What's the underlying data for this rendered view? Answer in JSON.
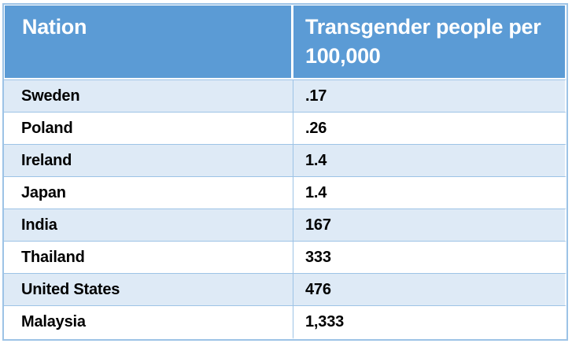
{
  "table": {
    "columns": [
      {
        "label": "Nation"
      },
      {
        "label": "Transgender people per 100,000"
      }
    ],
    "rows": [
      {
        "nation": "Sweden",
        "value": ".17"
      },
      {
        "nation": "Poland",
        "value": ".26"
      },
      {
        "nation": "Ireland",
        "value": "1.4"
      },
      {
        "nation": "Japan",
        "value": "1.4"
      },
      {
        "nation": "India",
        "value": "167"
      },
      {
        "nation": "Thailand",
        "value": "333"
      },
      {
        "nation": "United States",
        "value": "476"
      },
      {
        "nation": "Malaysia",
        "value": "1,333"
      }
    ],
    "colors": {
      "header_bg": "#5B9BD5",
      "header_text": "#FFFFFF",
      "band_bg": "#DEEAF6",
      "border": "#9DC3E6",
      "body_text": "#000000"
    }
  },
  "chart_data": {
    "type": "table",
    "title": "Transgender people per 100,000 by nation",
    "columns": [
      "Nation",
      "Transgender people per 100,000"
    ],
    "categories": [
      "Sweden",
      "Poland",
      "Ireland",
      "Japan",
      "India",
      "Thailand",
      "United States",
      "Malaysia"
    ],
    "values": [
      0.17,
      0.26,
      1.4,
      1.4,
      167,
      333,
      476,
      1333
    ],
    "value_labels": [
      ".17",
      ".26",
      "1.4",
      "1.4",
      "167",
      "333",
      "476",
      "1,333"
    ],
    "legend_position": "none",
    "grid": false
  }
}
